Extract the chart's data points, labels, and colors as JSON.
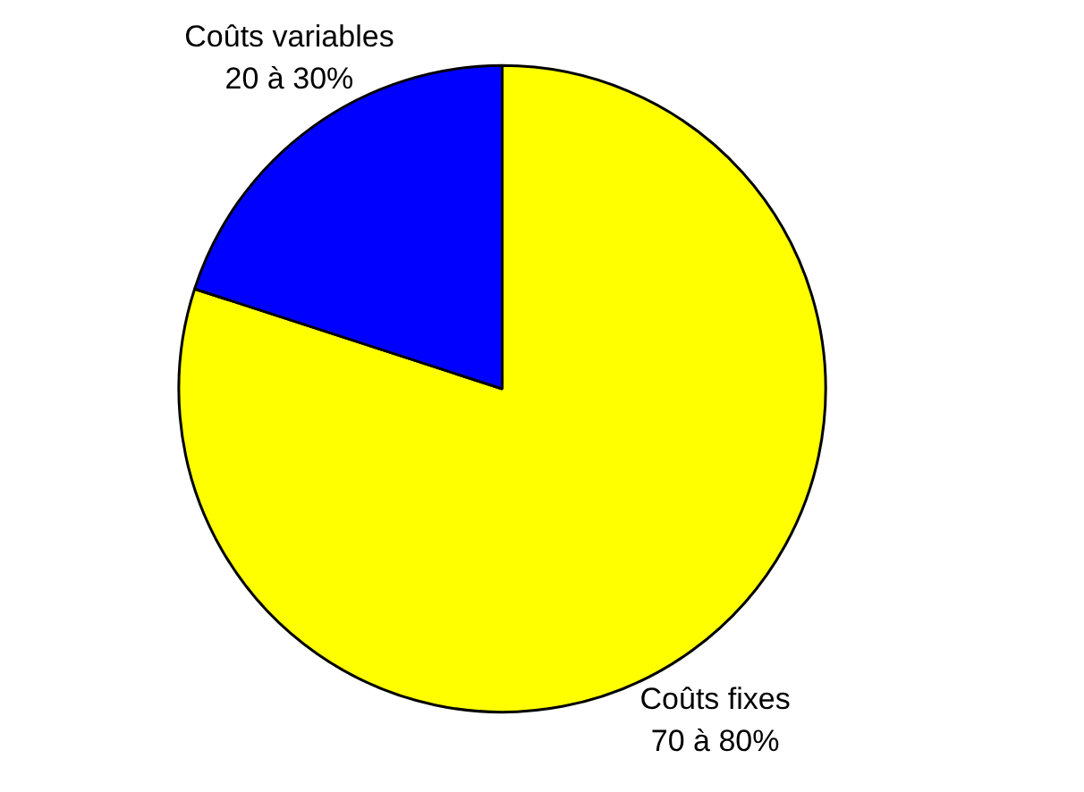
{
  "chart_data": {
    "type": "pie",
    "categories": [
      "Coûts fixes",
      "Coûts variables"
    ],
    "values": [
      80,
      20
    ],
    "colors": [
      "#ffff00",
      "#0000ff"
    ],
    "value_labels": [
      "70 à 80%",
      "20 à 30%"
    ]
  }
}
